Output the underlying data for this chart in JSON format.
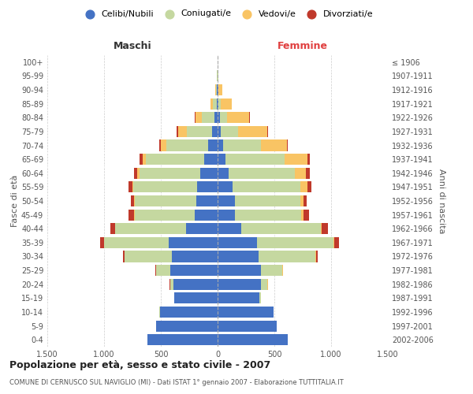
{
  "age_groups": [
    "0-4",
    "5-9",
    "10-14",
    "15-19",
    "20-24",
    "25-29",
    "30-34",
    "35-39",
    "40-44",
    "45-49",
    "50-54",
    "55-59",
    "60-64",
    "65-69",
    "70-74",
    "75-79",
    "80-84",
    "85-89",
    "90-94",
    "95-99",
    "100+"
  ],
  "birth_years": [
    "2002-2006",
    "1997-2001",
    "1992-1996",
    "1987-1991",
    "1982-1986",
    "1977-1981",
    "1972-1976",
    "1967-1971",
    "1962-1966",
    "1957-1961",
    "1952-1956",
    "1947-1951",
    "1942-1946",
    "1937-1941",
    "1932-1936",
    "1927-1931",
    "1922-1926",
    "1917-1921",
    "1912-1916",
    "1907-1911",
    "≤ 1906"
  ],
  "males": {
    "celibi": [
      620,
      540,
      510,
      380,
      390,
      420,
      400,
      430,
      280,
      200,
      190,
      180,
      150,
      120,
      80,
      50,
      30,
      10,
      5,
      3,
      2
    ],
    "coniugati": [
      0,
      2,
      3,
      5,
      30,
      120,
      420,
      570,
      620,
      530,
      540,
      560,
      540,
      510,
      370,
      220,
      110,
      30,
      10,
      3,
      0
    ],
    "vedovi": [
      0,
      0,
      0,
      0,
      0,
      1,
      2,
      3,
      3,
      5,
      5,
      10,
      15,
      30,
      50,
      80,
      55,
      20,
      5,
      0,
      0
    ],
    "divorziati": [
      0,
      0,
      0,
      0,
      2,
      5,
      10,
      30,
      40,
      50,
      30,
      35,
      30,
      30,
      15,
      10,
      5,
      0,
      0,
      0,
      0
    ]
  },
  "females": {
    "nubili": [
      620,
      520,
      490,
      370,
      380,
      380,
      360,
      350,
      210,
      155,
      150,
      130,
      100,
      70,
      50,
      30,
      20,
      10,
      5,
      3,
      2
    ],
    "coniugate": [
      0,
      2,
      5,
      10,
      60,
      190,
      500,
      670,
      700,
      580,
      580,
      600,
      580,
      520,
      330,
      150,
      60,
      15,
      5,
      2,
      0
    ],
    "vedove": [
      0,
      0,
      0,
      0,
      2,
      3,
      5,
      8,
      10,
      20,
      30,
      60,
      100,
      200,
      230,
      260,
      200,
      100,
      35,
      5,
      1
    ],
    "divorziate": [
      0,
      0,
      0,
      0,
      2,
      5,
      20,
      40,
      55,
      50,
      25,
      35,
      35,
      25,
      10,
      5,
      5,
      0,
      0,
      0,
      0
    ]
  },
  "colors": {
    "celibi": "#4472c4",
    "coniugati": "#c5d8a0",
    "vedovi": "#f9c464",
    "divorziati": "#c0392b"
  },
  "title": "Popolazione per età, sesso e stato civile - 2007",
  "subtitle": "COMUNE DI CERNUSCO SUL NAVIGLIO (MI) - Dati ISTAT 1° gennaio 2007 - Elaborazione TUTTITALIA.IT",
  "xlabel_left": "Maschi",
  "xlabel_right": "Femmine",
  "ylabel_left": "Fasce di età",
  "ylabel_right": "Anni di nascita",
  "xlim": 1500,
  "legend_labels": [
    "Celibi/Nubili",
    "Coniugati/e",
    "Vedovi/e",
    "Divorziati/e"
  ],
  "background_color": "#ffffff",
  "grid_color": "#cccccc"
}
